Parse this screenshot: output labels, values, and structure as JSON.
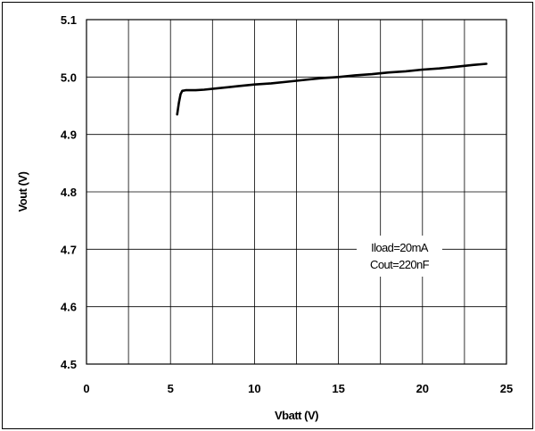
{
  "chart_data": {
    "type": "line",
    "xlabel": "Vbatt (V)",
    "ylabel": "Vout (V)",
    "xlim": [
      0,
      25
    ],
    "ylim": [
      4.5,
      5.1
    ],
    "x_ticks": [
      "0",
      "5",
      "10",
      "15",
      "20",
      "25"
    ],
    "y_ticks": [
      "5.1",
      "5.0",
      "4.9",
      "4.8",
      "4.7",
      "4.6",
      "4.5"
    ],
    "grid": true,
    "annotations": [
      "Iload=20mA",
      "Cout=220nF"
    ],
    "series": [
      {
        "x": [
          5.4,
          5.5,
          5.6,
          5.7,
          5.9,
          6.5,
          7.0,
          8.0,
          9.0,
          10.0,
          11.0,
          12.0,
          13.0,
          14.0,
          15.0,
          16.0,
          17.0,
          18.0,
          19.0,
          20.0,
          21.0,
          22.0,
          23.0,
          23.8
        ],
        "y": [
          4.935,
          4.955,
          4.97,
          4.976,
          4.977,
          4.977,
          4.978,
          4.981,
          4.984,
          4.987,
          4.989,
          4.992,
          4.995,
          4.998,
          5.0,
          5.003,
          5.005,
          5.008,
          5.01,
          5.013,
          5.015,
          5.018,
          5.021,
          5.023
        ]
      }
    ]
  },
  "colors": {
    "line": "#000000",
    "grid": "#000000",
    "background": "#ffffff"
  }
}
